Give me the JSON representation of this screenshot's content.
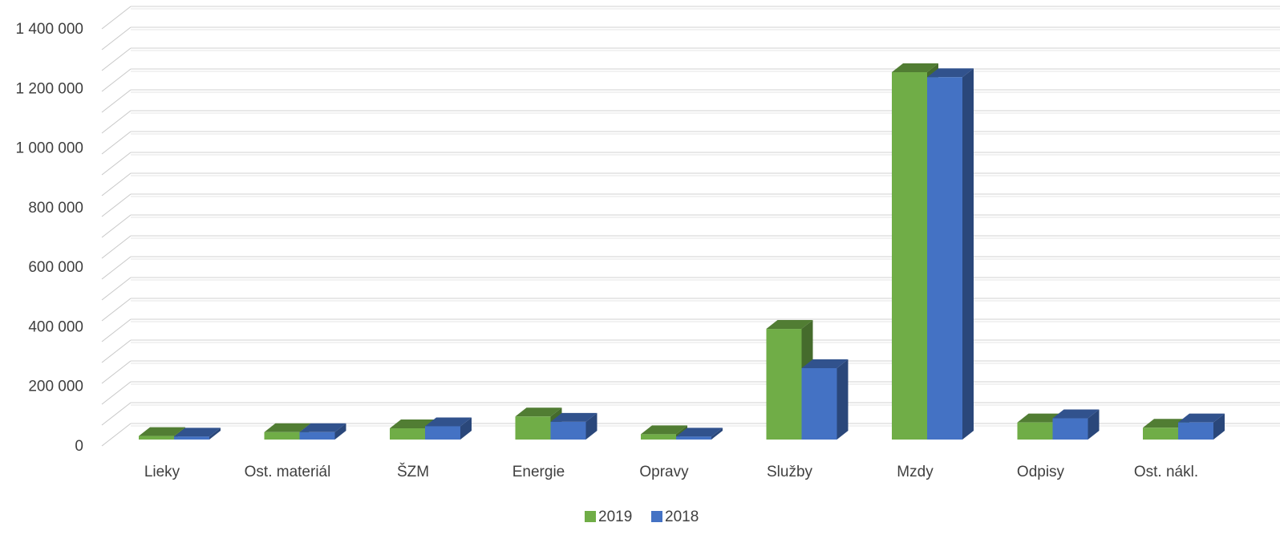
{
  "chart_data": {
    "type": "bar",
    "title": "",
    "xlabel": "",
    "ylabel": "",
    "categories": [
      "Lieky",
      "Ost. materiál",
      "ŠZM",
      "Energie",
      "Opravy",
      "Služby",
      "Mzdy",
      "Odpisy",
      "Ost. nákl."
    ],
    "series": [
      {
        "name": "2019",
        "color": "#70AD47",
        "values": [
          12000,
          25000,
          38000,
          78000,
          18000,
          375000,
          1245000,
          58000,
          40000
        ]
      },
      {
        "name": "2018",
        "color": "#4472C4",
        "values": [
          10000,
          25000,
          45000,
          60000,
          10000,
          242000,
          1228000,
          72000,
          58000
        ]
      }
    ],
    "ylim": [
      0,
      1400000
    ],
    "yticks": [
      0,
      200000,
      400000,
      600000,
      800000,
      1000000,
      1200000,
      1400000
    ],
    "ytick_labels": [
      "0",
      "200 000",
      "400 000",
      "600 000",
      "800 000",
      "1 000 000",
      "1 200 000",
      "1 400 000"
    ],
    "grid": true,
    "legend": "bottom",
    "style": "3d-column"
  }
}
